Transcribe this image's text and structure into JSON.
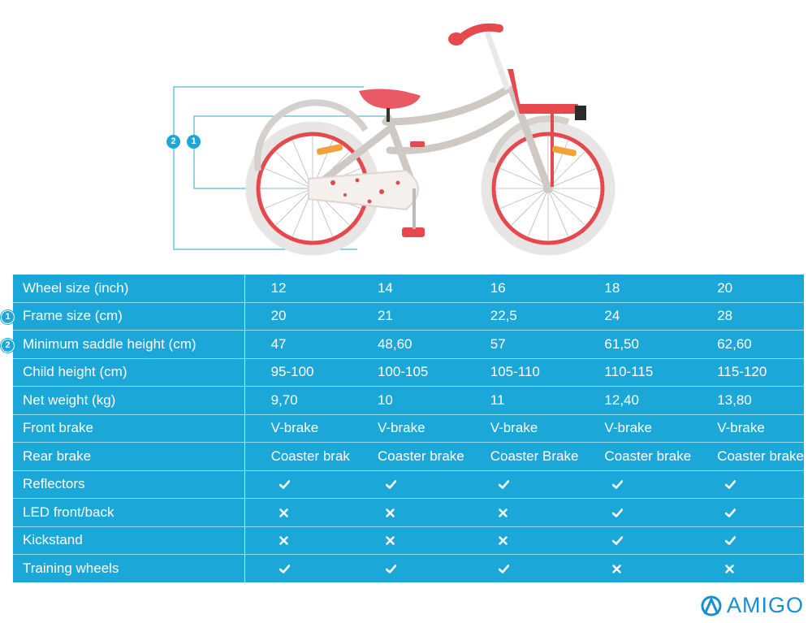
{
  "brand": {
    "logo_text": "AMIGO",
    "accent": "#1ba8d9"
  },
  "markers": {
    "one": "1",
    "two": "2"
  },
  "table": {
    "rows": [
      {
        "label": "Wheel size (inch)",
        "values": [
          "12",
          "14",
          "16",
          "18",
          "20"
        ]
      },
      {
        "label": "Frame size (cm)",
        "marker": "1",
        "values": [
          "20",
          "21",
          "22,5",
          "24",
          "28"
        ]
      },
      {
        "label": "Minimum saddle height (cm)",
        "marker": "2",
        "values": [
          "47",
          "48,60",
          "57",
          "61,50",
          "62,60"
        ]
      },
      {
        "label": "Child height (cm)",
        "values": [
          "95-100",
          "100-105",
          "105-110",
          "110-115",
          "115-120"
        ]
      },
      {
        "label": "Net weight (kg)",
        "values": [
          "9,70",
          "10",
          "11",
          "12,40",
          "13,80"
        ]
      },
      {
        "label": "Front brake",
        "values": [
          "V-brake",
          "V-brake",
          "V-brake",
          "V-brake",
          "V-brake"
        ]
      },
      {
        "label": "Rear brake",
        "values": [
          "Coaster brak",
          "Coaster brake",
          "Coaster Brake",
          "Coaster brake",
          "Coaster brake"
        ]
      },
      {
        "label": "Reflectors",
        "marks": [
          "check",
          "check",
          "check",
          "check",
          "check"
        ]
      },
      {
        "label": "LED front/back",
        "marks": [
          "cross",
          "cross",
          "cross",
          "check",
          "check"
        ]
      },
      {
        "label": "Kickstand",
        "marks": [
          "cross",
          "cross",
          "cross",
          "check",
          "check"
        ]
      },
      {
        "label": "Training wheels",
        "marks": [
          "check",
          "check",
          "check",
          "cross",
          "cross"
        ]
      }
    ]
  }
}
